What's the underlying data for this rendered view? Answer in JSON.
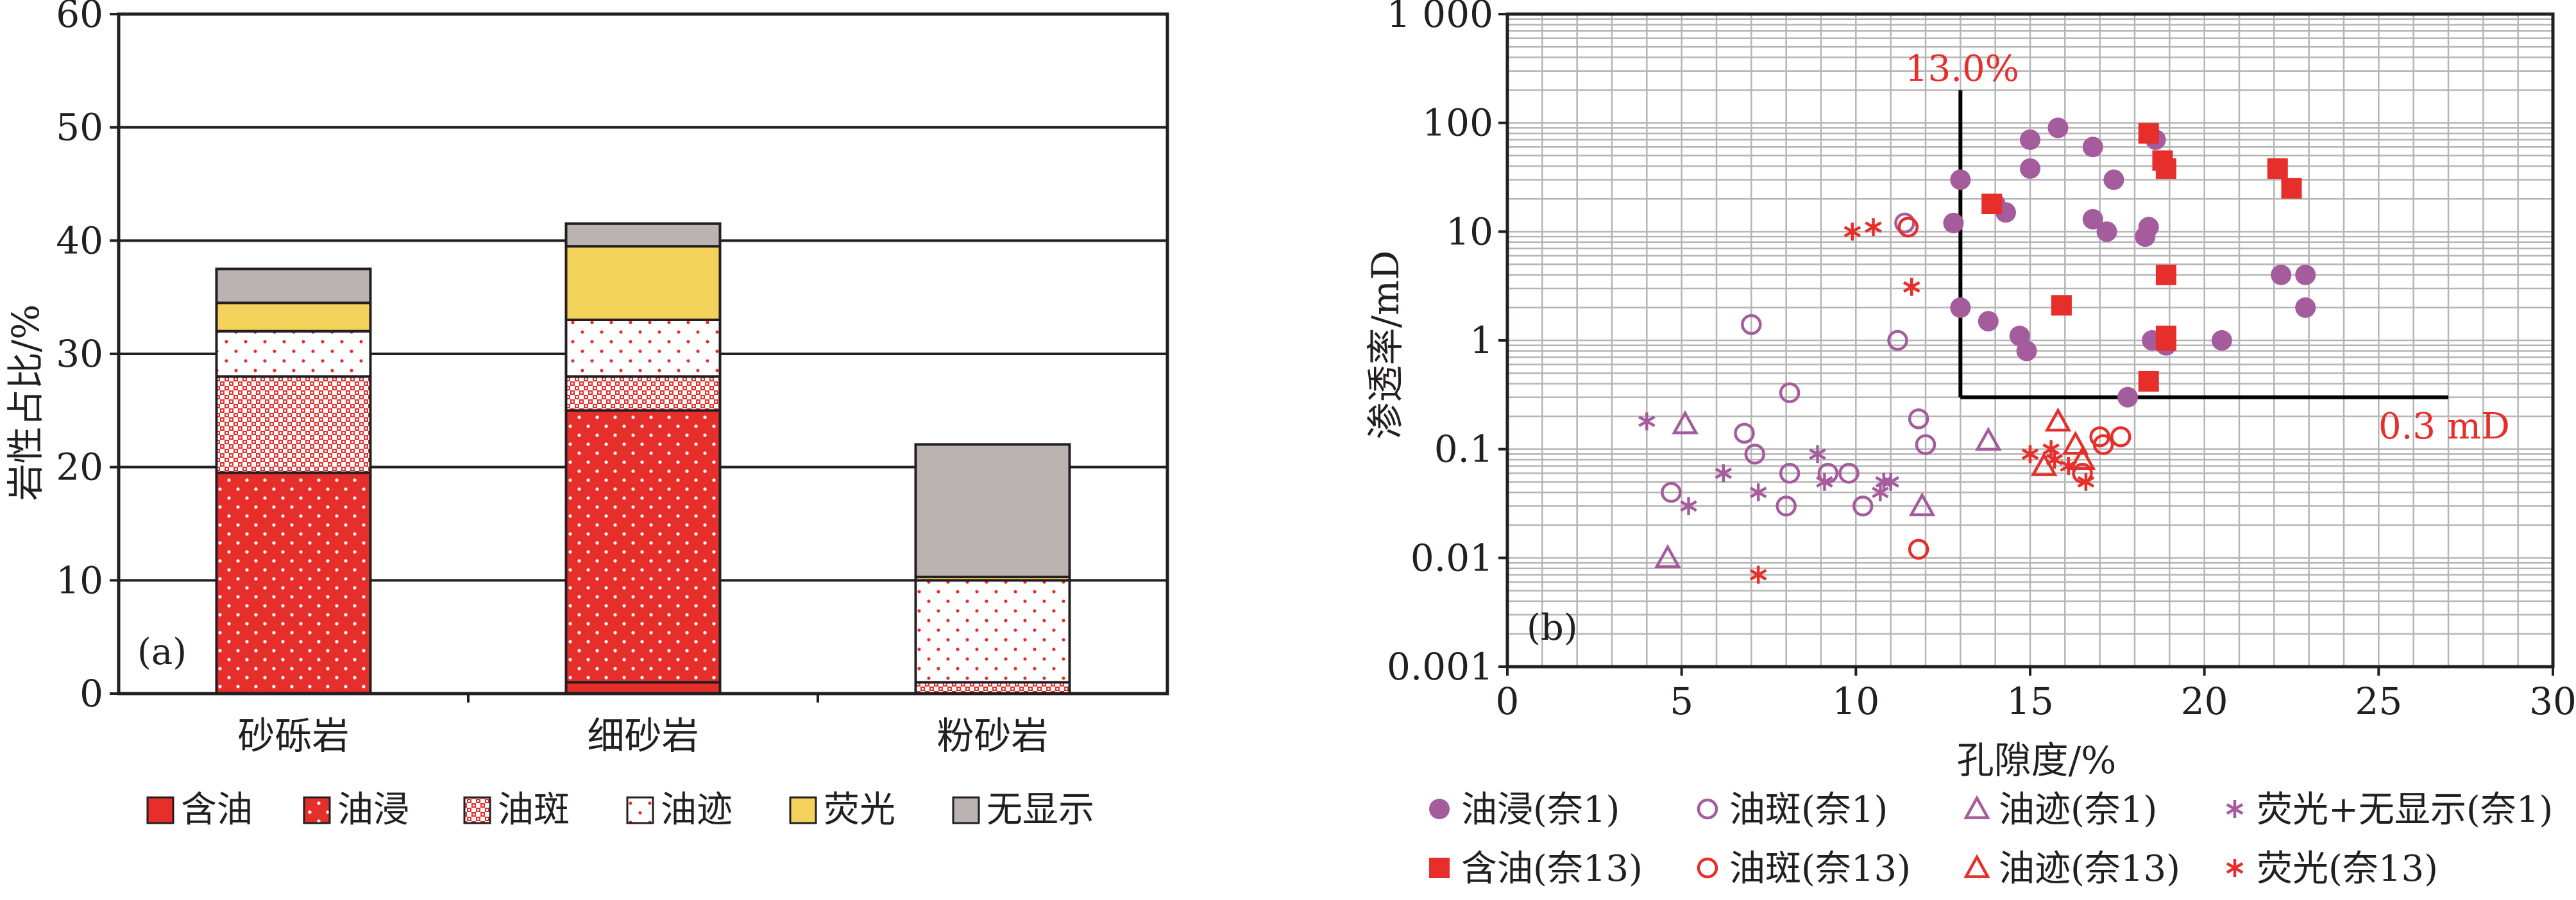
{
  "colors": {
    "oil": "#e62e2a",
    "fluor": "#f3d15a",
    "none": "#bbb3b1",
    "purple": "#a55c9d",
    "red": "#e62e2a",
    "axis": "#231f20"
  },
  "chart_data": [
    {
      "type": "bar",
      "stacked": true,
      "panel_label": "(a)",
      "ylabel": "岩性占比/%",
      "ylim": [
        0,
        60
      ],
      "yticks": [
        0,
        10,
        20,
        30,
        40,
        50,
        60
      ],
      "grid": true,
      "categories": [
        "砂砾岩",
        "细砂岩",
        "粉砂岩"
      ],
      "series": [
        {
          "name": "含油",
          "key": "hanyou",
          "values": [
            0,
            1,
            0
          ]
        },
        {
          "name": "油浸",
          "key": "youjin",
          "values": [
            19.5,
            24,
            0
          ]
        },
        {
          "name": "油斑",
          "key": "youban",
          "values": [
            8.5,
            3,
            1
          ]
        },
        {
          "name": "油迹",
          "key": "youji",
          "values": [
            4,
            5,
            9
          ]
        },
        {
          "name": "荧光",
          "key": "yingguang",
          "values": [
            2.5,
            6.5,
            0.3
          ]
        },
        {
          "name": "无显示",
          "key": "wuxianshi",
          "values": [
            3,
            2,
            11.7
          ]
        }
      ],
      "legend_position": "bottom"
    },
    {
      "type": "scatter",
      "panel_label": "(b)",
      "xlabel": "孔隙度/%",
      "ylabel": "渗透率/mD",
      "xlim": [
        0,
        30
      ],
      "ylim": [
        0.001,
        1000
      ],
      "yscale": "log",
      "xticks": [
        0,
        5,
        10,
        15,
        20,
        25,
        30
      ],
      "yticks": [
        {
          "v": 0.001,
          "label": "0.001"
        },
        {
          "v": 0.01,
          "label": "0.01"
        },
        {
          "v": 0.1,
          "label": "0.1"
        },
        {
          "v": 1,
          "label": "1"
        },
        {
          "v": 10,
          "label": "10"
        },
        {
          "v": 100,
          "label": "100"
        },
        {
          "v": 1000,
          "label": "1 000"
        }
      ],
      "grid": true,
      "cutoffs": {
        "porosity": 13,
        "permeability": 0.3,
        "porosity_label": "13.0%",
        "permeability_label": "0.3 mD"
      },
      "legend_position": "bottom",
      "series": [
        {
          "name": "油浸(奈1)",
          "marker": "circle-filled",
          "color": "purple",
          "points": [
            [
              13,
              30
            ],
            [
              12.8,
              12
            ],
            [
              14,
              18
            ],
            [
              14.3,
              15
            ],
            [
              15,
              70
            ],
            [
              15,
              38
            ],
            [
              15.8,
              90
            ],
            [
              16.8,
              60
            ],
            [
              17.4,
              30
            ],
            [
              18.6,
              70
            ],
            [
              13,
              2
            ],
            [
              13.8,
              1.5
            ],
            [
              14.7,
              1.1
            ],
            [
              14.9,
              0.8
            ],
            [
              16.8,
              13
            ],
            [
              17.2,
              10
            ],
            [
              18.3,
              9
            ],
            [
              18.4,
              11
            ],
            [
              18.5,
              1
            ],
            [
              18.9,
              0.9
            ],
            [
              20.5,
              1
            ],
            [
              22.2,
              4
            ],
            [
              22.9,
              4
            ],
            [
              22.9,
              2
            ],
            [
              17.8,
              0.3
            ]
          ]
        },
        {
          "name": "油斑(奈1)",
          "marker": "circle-open",
          "color": "purple",
          "points": [
            [
              7,
              1.4
            ],
            [
              8.1,
              0.33
            ],
            [
              6.8,
              0.14
            ],
            [
              7.1,
              0.09
            ],
            [
              4.7,
              0.04
            ],
            [
              8.1,
              0.06
            ],
            [
              8,
              0.03
            ],
            [
              9.2,
              0.06
            ],
            [
              9.8,
              0.06
            ],
            [
              10.2,
              0.03
            ],
            [
              11.2,
              1
            ],
            [
              11.8,
              0.19
            ],
            [
              12,
              0.11
            ],
            [
              11.4,
              12
            ],
            [
              11.5,
              11
            ]
          ]
        },
        {
          "name": "油迹(奈1)",
          "marker": "triangle-open",
          "color": "purple",
          "points": [
            [
              5.1,
              0.17
            ],
            [
              4.6,
              0.01
            ],
            [
              11.9,
              0.03
            ],
            [
              13.8,
              0.12
            ]
          ]
        },
        {
          "name": "荧光+无显示(奈1)",
          "marker": "asterisk",
          "color": "purple",
          "points": [
            [
              4,
              0.18
            ],
            [
              5.2,
              0.03
            ],
            [
              6.2,
              0.06
            ],
            [
              7.2,
              0.04
            ],
            [
              8.9,
              0.09
            ],
            [
              9.1,
              0.05
            ],
            [
              10.7,
              0.04
            ],
            [
              10.8,
              0.05
            ],
            [
              11,
              0.05
            ]
          ]
        },
        {
          "name": "含油(奈13)",
          "marker": "square-filled",
          "color": "red",
          "points": [
            [
              13.9,
              18
            ],
            [
              18.4,
              80
            ],
            [
              18.8,
              45
            ],
            [
              18.9,
              38
            ],
            [
              22.1,
              38
            ],
            [
              22.5,
              25
            ],
            [
              15.9,
              2.1
            ],
            [
              18.9,
              4
            ],
            [
              18.9,
              1.1
            ],
            [
              18.9,
              1
            ],
            [
              18.4,
              0.42
            ]
          ]
        },
        {
          "name": "油斑(奈13)",
          "marker": "circle-open",
          "color": "red",
          "points": [
            [
              11.5,
              11
            ],
            [
              11.8,
              0.012
            ],
            [
              16.5,
              0.06
            ],
            [
              17,
              0.13
            ],
            [
              17.1,
              0.11
            ],
            [
              17.6,
              0.13
            ]
          ]
        },
        {
          "name": "油迹(奈13)",
          "marker": "triangle-open",
          "color": "red",
          "points": [
            [
              15.4,
              0.07
            ],
            [
              15.8,
              0.18
            ],
            [
              16.3,
              0.11
            ],
            [
              16.5,
              0.08
            ]
          ]
        },
        {
          "name": "荧光(奈13)",
          "marker": "asterisk",
          "color": "red",
          "points": [
            [
              9.9,
              10
            ],
            [
              10.5,
              11
            ],
            [
              11.6,
              3.1
            ],
            [
              7.2,
              0.007
            ],
            [
              15,
              0.09
            ],
            [
              15.6,
              0.1
            ],
            [
              15.7,
              0.08
            ],
            [
              16.1,
              0.07
            ],
            [
              16.6,
              0.05
            ]
          ]
        }
      ]
    }
  ]
}
